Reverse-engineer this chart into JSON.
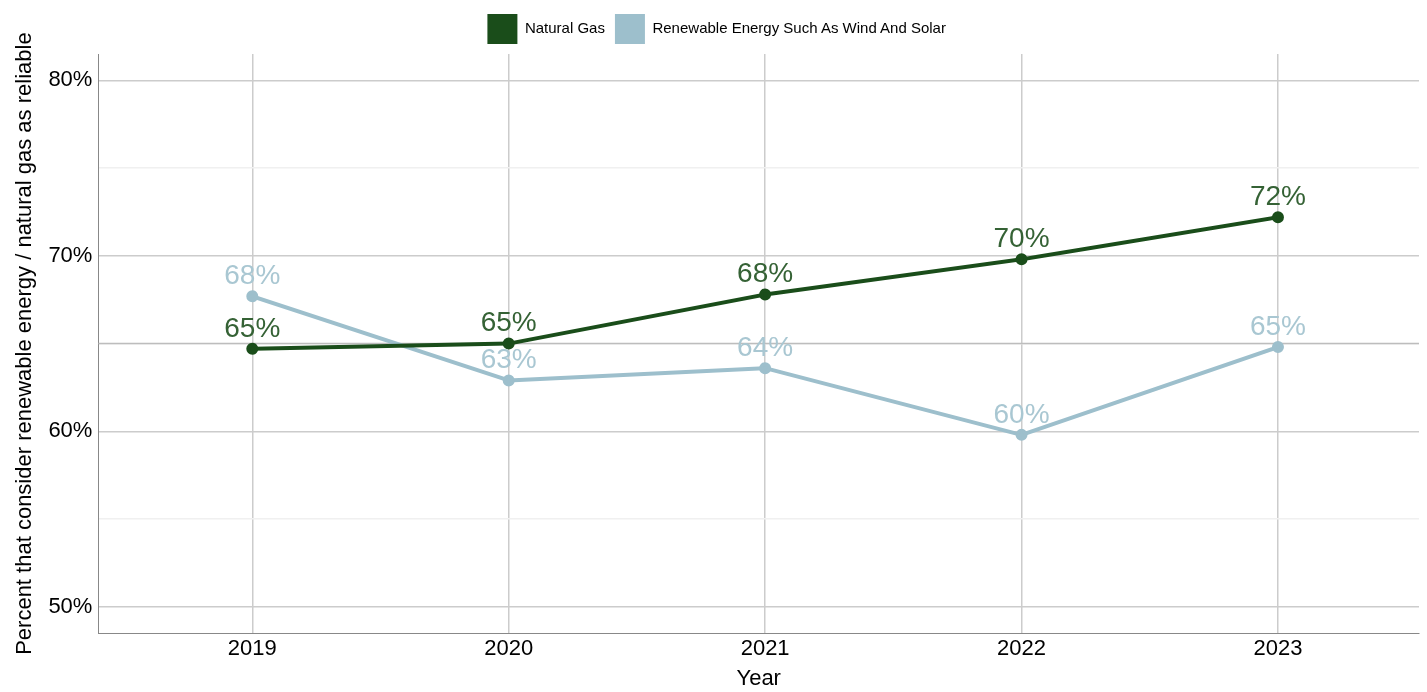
{
  "chart_data": {
    "type": "line",
    "xlabel": "Year",
    "ylabel": "Percent that consider renewable energy / natural gas as reliable",
    "x": [
      2019,
      2020,
      2021,
      2022,
      2023
    ],
    "series": [
      {
        "name": "Natural Gas",
        "color": "#1a4d1a",
        "values": [
          64.7,
          65.0,
          67.8,
          69.8,
          72.2
        ],
        "value_labels": [
          "65%",
          "65%",
          "68%",
          "70%",
          "72%"
        ]
      },
      {
        "name": "Renewable Energy Such As Wind And Solar",
        "color": "#9dbfcc",
        "values": [
          67.7,
          62.9,
          63.6,
          59.8,
          64.8
        ],
        "value_labels": [
          "68%",
          "63%",
          "64%",
          "60%",
          "65%"
        ]
      }
    ],
    "xlim": [
      2018.4,
      2023.55
    ],
    "xticks": [
      2019,
      2020,
      2021,
      2022,
      2023
    ],
    "ylim": [
      48.5,
      81.5
    ],
    "yticks": [
      {
        "value": 50,
        "label": "50%"
      },
      {
        "value": 55,
        "label": null
      },
      {
        "value": 60,
        "label": "60%"
      },
      {
        "value": 65,
        "label": null
      },
      {
        "value": 70,
        "label": "70%"
      },
      {
        "value": 75,
        "label": null
      },
      {
        "value": 80,
        "label": "80%"
      }
    ],
    "ref_lines": [
      {
        "axis": "y",
        "value": 65,
        "color": "#bdbdbd"
      }
    ],
    "grid": true,
    "legend": "top",
    "marker": "circle",
    "line_style": "solid"
  }
}
